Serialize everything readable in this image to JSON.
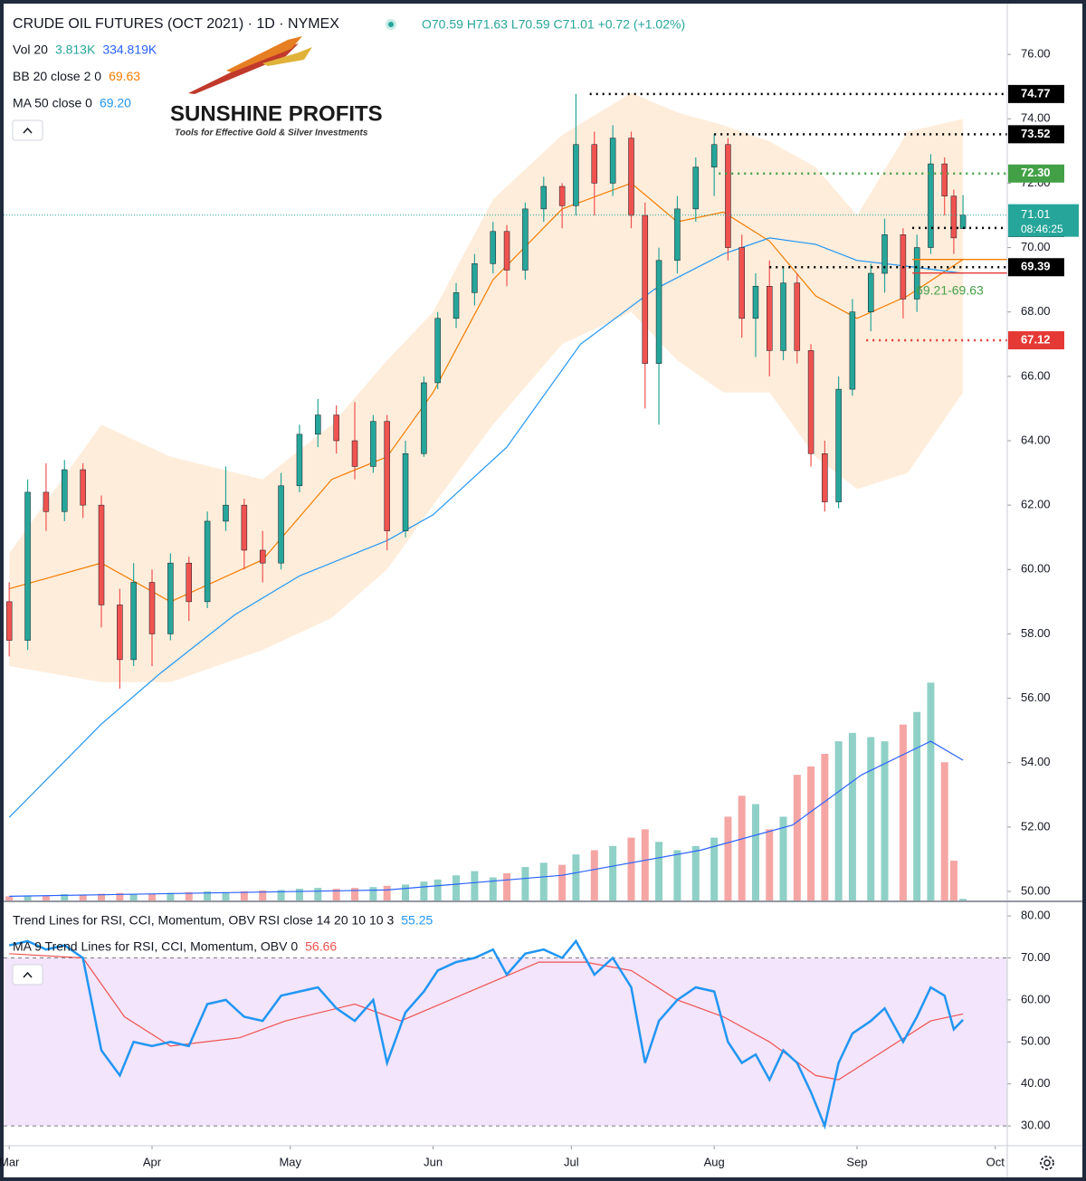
{
  "logo": {
    "title": "SUNSHINE PROFITS",
    "tagline": "Tools for Effective Gold & Silver Investments"
  },
  "chart_data": {
    "type": "candlestick",
    "title": "CRUDE OIL FUTURES (OCT 2021) · 1D · NYMEX",
    "ohlc_text": "O70.59 H71.63 L70.59 C71.01 +0.72 (+1.02%)",
    "legend": [
      {
        "label": "Vol 20",
        "readings": [
          {
            "text": "3.813K",
            "color": "#26a69a"
          },
          {
            "text": "334.819K",
            "color": "#2962ff"
          }
        ]
      },
      {
        "label": "BB 20 close 2 0",
        "readings": [
          {
            "text": "69.63",
            "color": "#f57c00"
          }
        ]
      },
      {
        "label": "MA 50 close 0",
        "readings": [
          {
            "text": "69.20",
            "color": "#2196f3"
          }
        ]
      }
    ],
    "up_color": "#26a69a",
    "down_color": "#ef5350",
    "x": [
      0,
      4,
      8,
      12,
      16,
      20,
      24,
      27,
      31,
      35,
      39,
      43,
      47,
      51,
      55,
      59,
      63,
      67,
      71,
      75,
      79,
      82,
      86,
      90,
      93,
      97,
      101,
      105,
      108,
      112,
      116,
      120,
      123,
      127,
      131,
      135,
      138,
      141,
      145,
      149,
      153,
      156,
      159,
      162,
      165,
      168,
      171,
      174,
      177,
      180,
      183,
      187,
      190,
      194,
      197,
      200,
      203,
      205,
      207
    ],
    "open": [
      59.0,
      57.8,
      62.4,
      61.8,
      63.1,
      62.0,
      58.9,
      57.2,
      59.6,
      58.0,
      60.2,
      59.0,
      61.5,
      62.0,
      60.6,
      60.2,
      62.6,
      64.2,
      64.8,
      64.0,
      63.2,
      64.6,
      61.2,
      63.6,
      65.8,
      67.8,
      68.6,
      69.5,
      70.5,
      69.3,
      71.2,
      71.9,
      71.3,
      73.2,
      72.0,
      73.4,
      71.0,
      66.4,
      69.6,
      71.2,
      72.5,
      73.2,
      70.0,
      67.8,
      68.8,
      66.8,
      68.9,
      66.8,
      63.6,
      62.1,
      65.6,
      68.0,
      69.2,
      70.4,
      68.4,
      70.0,
      72.6,
      71.6,
      70.59
    ],
    "high": [
      59.6,
      62.8,
      63.3,
      63.4,
      63.3,
      62.3,
      59.4,
      60.2,
      60.0,
      60.5,
      60.4,
      61.8,
      63.2,
      62.2,
      61.2,
      63.0,
      64.5,
      65.3,
      65.1,
      65.2,
      64.8,
      64.8,
      64.0,
      66.0,
      68.0,
      68.9,
      69.8,
      70.8,
      70.7,
      71.4,
      72.2,
      72.0,
      74.77,
      73.6,
      73.8,
      73.6,
      71.4,
      70.0,
      71.6,
      72.8,
      73.52,
      73.4,
      70.4,
      69.2,
      69.6,
      69.4,
      69.2,
      67.0,
      64.0,
      66.0,
      68.4,
      69.5,
      70.9,
      70.6,
      70.4,
      72.9,
      72.8,
      71.8,
      71.63
    ],
    "low": [
      57.3,
      57.5,
      61.2,
      61.5,
      61.6,
      58.2,
      56.3,
      57.0,
      57.0,
      57.8,
      58.4,
      58.8,
      61.2,
      60.0,
      59.6,
      60.0,
      62.4,
      63.8,
      63.6,
      62.8,
      63.0,
      60.6,
      61.0,
      63.5,
      65.6,
      67.5,
      68.2,
      69.2,
      68.8,
      69.0,
      70.8,
      70.6,
      71.0,
      71.0,
      71.6,
      70.6,
      65.0,
      64.5,
      69.2,
      70.8,
      71.6,
      69.6,
      67.2,
      66.6,
      66.0,
      66.5,
      66.4,
      63.2,
      61.8,
      61.9,
      65.4,
      67.4,
      68.6,
      67.8,
      68.0,
      69.8,
      71.0,
      69.8,
      70.59
    ],
    "close": [
      57.8,
      62.4,
      61.8,
      63.1,
      62.0,
      58.9,
      57.2,
      59.6,
      58.0,
      60.2,
      59.0,
      61.5,
      62.0,
      60.6,
      60.2,
      62.6,
      64.2,
      64.8,
      64.0,
      63.2,
      64.6,
      61.2,
      63.6,
      65.8,
      67.8,
      68.6,
      69.5,
      70.5,
      69.3,
      71.2,
      71.9,
      71.3,
      73.2,
      72.0,
      73.4,
      71.0,
      66.4,
      69.6,
      71.2,
      72.5,
      73.2,
      70.0,
      67.8,
      68.8,
      66.8,
      68.9,
      66.8,
      63.6,
      62.1,
      65.6,
      68.0,
      69.2,
      70.4,
      68.4,
      70.0,
      72.6,
      71.6,
      70.3,
      71.01
    ],
    "xlim": [
      -2,
      217
    ],
    "xticks": [
      {
        "value": 0,
        "label": "Mar"
      },
      {
        "value": 31,
        "label": "Apr"
      },
      {
        "value": 61,
        "label": "May"
      },
      {
        "value": 92,
        "label": "Jun"
      },
      {
        "value": 122,
        "label": "Jul"
      },
      {
        "value": 153,
        "label": "Aug"
      },
      {
        "value": 184,
        "label": "Sep"
      },
      {
        "value": 214,
        "label": "Oct"
      }
    ],
    "ylim": [
      49.72,
      77.69
    ],
    "yticks": [
      {
        "value": 50,
        "label": "50.00"
      },
      {
        "value": 52,
        "label": "52.00"
      },
      {
        "value": 54,
        "label": "54.00"
      },
      {
        "value": 56,
        "label": "56.00"
      },
      {
        "value": 58,
        "label": "58.00"
      },
      {
        "value": 60,
        "label": "60.00"
      },
      {
        "value": 62,
        "label": "62.00"
      },
      {
        "value": 64,
        "label": "64.00"
      },
      {
        "value": 66,
        "label": "66.00"
      },
      {
        "value": 68,
        "label": "68.00"
      },
      {
        "value": 70,
        "label": "70.00"
      },
      {
        "value": 72,
        "label": "72.00"
      },
      {
        "value": 74,
        "label": "74.00"
      },
      {
        "value": 76,
        "label": "76.00"
      }
    ],
    "volume": {
      "values": [
        10,
        12,
        12,
        15,
        14,
        16,
        18,
        15,
        16,
        18,
        20,
        22,
        20,
        22,
        24,
        25,
        28,
        30,
        28,
        30,
        32,
        35,
        38,
        45,
        50,
        60,
        70,
        55,
        65,
        80,
        90,
        85,
        110,
        120,
        130,
        150,
        170,
        140,
        120,
        130,
        150,
        200,
        250,
        230,
        170,
        200,
        300,
        320,
        350,
        380,
        400,
        390,
        380,
        420,
        450,
        520,
        330,
        95,
        3.813
      ],
      "vlim": [
        0,
        2150
      ],
      "up_color": "#8fd0c7",
      "down_color": "#f5a6a4",
      "ma": {
        "x": [
          0,
          82,
          120,
          150,
          170,
          185,
          200,
          207
        ],
        "values": [
          10,
          25,
          60,
          120,
          180,
          300,
          380,
          334.819
        ],
        "color": "#2962ff"
      }
    },
    "ma50": {
      "x": [
        0,
        20,
        33,
        49,
        63,
        82,
        92,
        108,
        124,
        140,
        155,
        165,
        175,
        184,
        196,
        207
      ],
      "values": [
        52.3,
        55.2,
        56.8,
        58.6,
        59.8,
        60.9,
        61.7,
        63.8,
        67.0,
        68.7,
        69.8,
        70.3,
        70.1,
        69.6,
        69.4,
        69.2
      ],
      "color": "#2196f3"
    },
    "bb": {
      "x": [
        0,
        20,
        35,
        55,
        70,
        82,
        92,
        105,
        120,
        135,
        145,
        155,
        165,
        175,
        184,
        195,
        207
      ],
      "basis": [
        59.4,
        60.2,
        59.0,
        60.3,
        62.8,
        63.5,
        65.5,
        69.0,
        71.2,
        72.0,
        70.8,
        71.1,
        70.2,
        68.5,
        67.8,
        68.5,
        69.63
      ],
      "upper": [
        60.5,
        64.5,
        63.5,
        62.8,
        64.5,
        66.5,
        68.0,
        71.5,
        73.5,
        74.8,
        74.2,
        73.8,
        73.3,
        72.5,
        71.0,
        73.6,
        74.0
      ],
      "lower": [
        57.0,
        56.5,
        56.5,
        57.5,
        58.5,
        60.0,
        62.0,
        64.5,
        67.0,
        68.0,
        66.5,
        65.5,
        65.5,
        63.5,
        62.5,
        63.0,
        65.5
      ],
      "color": "#f57c00",
      "fill": "#ffe6cc"
    },
    "levels": [
      {
        "value": 74.77,
        "start": 126,
        "color": "#000000"
      },
      {
        "value": 73.52,
        "start": 153,
        "color": "#000000"
      },
      {
        "value": 72.3,
        "label": "72.30",
        "start": 154,
        "color": "#43a047"
      },
      {
        "value": 70.61,
        "start": 196,
        "color": "#000000"
      },
      {
        "value": 69.39,
        "start": 165,
        "color": "#000000"
      },
      {
        "value": 67.12,
        "start": 186,
        "color": "#e53935"
      }
    ],
    "zone": {
      "low": 69.21,
      "high": 69.63,
      "label": "69.21-69.63",
      "start": 196,
      "color": "#f57c00",
      "text_color": "#43a047"
    },
    "last": {
      "value": 71.01,
      "countdown": "08:46:25",
      "color": "#26a69a"
    },
    "rsi": {
      "legend": "Trend Lines for RSI, CCI, Momentum, OBV RSI close 14 20 10 10 3",
      "reading": "55.25",
      "ma_legend": "MA 9 Trend Lines for RSI, CCI, Momentum, OBV 0",
      "ma_reading": "56.66",
      "values": [
        73,
        74,
        72,
        73,
        70,
        48,
        42,
        50,
        49,
        50,
        49,
        59,
        60,
        56,
        55,
        61,
        62,
        63,
        58,
        55,
        60,
        45,
        57,
        62,
        67,
        69,
        70,
        72,
        66,
        71,
        72,
        70,
        74,
        66,
        70,
        63,
        45,
        55,
        60,
        63,
        62,
        50,
        45,
        47,
        41,
        48,
        45,
        38,
        30,
        45,
        52,
        55,
        58,
        50,
        56,
        63,
        61,
        53,
        55.25
      ],
      "color": "#2196f3",
      "ma": {
        "x": [
          0,
          16,
          25,
          35,
          50,
          60,
          75,
          85,
          100,
          115,
          125,
          135,
          145,
          155,
          165,
          175,
          180,
          190,
          200,
          207
        ],
        "values": [
          71,
          70,
          56,
          49,
          51,
          55,
          59,
          55,
          62,
          69,
          69,
          67,
          60,
          56,
          50,
          42,
          41,
          48,
          55,
          56.66
        ],
        "color": "#ef5350"
      },
      "ylim": [
        25.5,
        82.6
      ],
      "yticks": [
        {
          "value": 30,
          "label": "30.00"
        },
        {
          "value": 40,
          "label": "40.00"
        },
        {
          "value": 50,
          "label": "50.00"
        },
        {
          "value": 60,
          "label": "60.00"
        },
        {
          "value": 70,
          "label": "70.00"
        },
        {
          "value": 80,
          "label": "80.00"
        }
      ],
      "band": [
        30,
        70
      ],
      "band_color": "#f3e5fb"
    }
  }
}
